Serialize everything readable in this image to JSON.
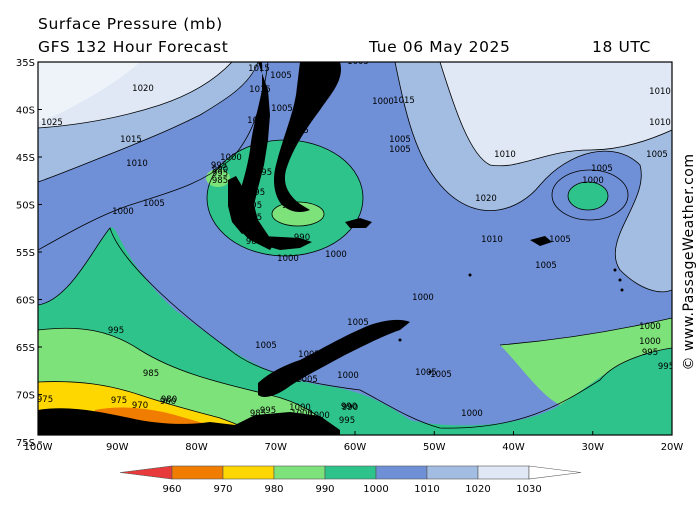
{
  "header": {
    "title": "Surface Pressure (mb)",
    "model_line": "GFS 132 Hour Forecast",
    "valid_date": "Tue 06 May 2025",
    "valid_time": "18 UTC"
  },
  "credit": "© www.PassageWeather.com",
  "axes": {
    "lat_labels": [
      "35S",
      "40S",
      "45S",
      "50S",
      "55S",
      "60S",
      "65S",
      "70S",
      "75S"
    ],
    "lon_labels": [
      "100W",
      "90W",
      "80W",
      "70W",
      "60W",
      "50W",
      "40W",
      "30W",
      "20W"
    ]
  },
  "colorbar": {
    "ticks": [
      "960",
      "970",
      "980",
      "990",
      "1000",
      "1010",
      "1020",
      "1030"
    ],
    "colors": [
      "#e83a3a",
      "#f07d00",
      "#ffd700",
      "#7ee27a",
      "#2fc38c",
      "#6f8fd6",
      "#a3bde2",
      "#dfe8f4",
      "#ffffff"
    ]
  },
  "map": {
    "land_color": "#000000",
    "contour_labels": [
      {
        "text": "1015",
        "name": "label-1015-a"
      },
      {
        "text": "1005",
        "name": "label-1005-a"
      },
      {
        "text": "1005",
        "name": "label-1005-b"
      },
      {
        "text": "1015",
        "name": "label-1015-b"
      },
      {
        "text": "1005",
        "name": "label-1005-c"
      },
      {
        "text": "1020",
        "name": "label-1020-a"
      },
      {
        "text": "1025",
        "name": "label-1025-a"
      },
      {
        "text": "1010",
        "name": "label-1010-a"
      },
      {
        "text": "1005",
        "name": "label-1005-d"
      },
      {
        "text": "1000",
        "name": "label-1000-a"
      },
      {
        "text": "1005",
        "name": "label-1005-e"
      },
      {
        "text": "1005",
        "name": "label-1005-f"
      },
      {
        "text": "1015",
        "name": "label-1015-c"
      },
      {
        "text": "1010",
        "name": "label-1010-b"
      },
      {
        "text": "1000",
        "name": "label-1000-b"
      },
      {
        "text": "995",
        "name": "label-995-a"
      },
      {
        "text": "990",
        "name": "label-990-a"
      },
      {
        "text": "985",
        "name": "label-985-a"
      },
      {
        "text": "1010",
        "name": "label-1010-c"
      },
      {
        "text": "1000",
        "name": "label-1000-c"
      },
      {
        "text": "1005",
        "name": "label-1005-g"
      },
      {
        "text": "1000",
        "name": "label-1000-d"
      },
      {
        "text": "995",
        "name": "label-995-b"
      },
      {
        "text": "990",
        "name": "label-990-b"
      },
      {
        "text": "995",
        "name": "label-995-c"
      },
      {
        "text": "990",
        "name": "label-990-c"
      },
      {
        "text": "985",
        "name": "label-985-b"
      },
      {
        "text": "995",
        "name": "label-995-d"
      },
      {
        "text": "995",
        "name": "label-995-e"
      },
      {
        "text": "1000",
        "name": "label-1000-e"
      },
      {
        "text": "995",
        "name": "label-995-f"
      },
      {
        "text": "1000",
        "name": "label-1000-f"
      },
      {
        "text": "1020",
        "name": "label-1020-b"
      },
      {
        "text": "1015",
        "name": "label-1015-d"
      },
      {
        "text": "1010",
        "name": "label-1010-d"
      },
      {
        "text": "1005",
        "name": "label-1005-h"
      },
      {
        "text": "1005",
        "name": "label-1005-i"
      },
      {
        "text": "1005",
        "name": "label-1005-j"
      },
      {
        "text": "1000",
        "name": "label-1000-g"
      },
      {
        "text": "1010",
        "name": "label-1010-e"
      },
      {
        "text": "1010",
        "name": "label-1010-f"
      },
      {
        "text": "1005",
        "name": "label-1005-k"
      },
      {
        "text": "1000",
        "name": "label-1000-h"
      },
      {
        "text": "1000",
        "name": "label-1000-i"
      },
      {
        "text": "1005",
        "name": "label-1005-l"
      },
      {
        "text": "1005",
        "name": "label-1005-m"
      },
      {
        "text": "1005",
        "name": "label-1005-n"
      },
      {
        "text": "1005",
        "name": "label-1005-o"
      },
      {
        "text": "1005",
        "name": "label-1005-p"
      },
      {
        "text": "1000",
        "name": "label-1000-j"
      },
      {
        "text": "995",
        "name": "label-995-g"
      },
      {
        "text": "1000",
        "name": "label-1000-k"
      },
      {
        "text": "1000",
        "name": "label-1000-l"
      },
      {
        "text": "1005",
        "name": "label-1005-q"
      },
      {
        "text": "1005",
        "name": "label-1005-r"
      },
      {
        "text": "995",
        "name": "label-995-h"
      },
      {
        "text": "990",
        "name": "label-990-d"
      },
      {
        "text": "1000",
        "name": "label-1000-m"
      },
      {
        "text": "995",
        "name": "label-995-i"
      },
      {
        "text": "985",
        "name": "label-985-c"
      },
      {
        "text": "980",
        "name": "label-980-a"
      },
      {
        "text": "970",
        "name": "label-970-a"
      },
      {
        "text": "975",
        "name": "label-975-a"
      },
      {
        "text": "980",
        "name": "label-980-b"
      },
      {
        "text": "975",
        "name": "label-975-b"
      },
      {
        "text": "980",
        "name": "label-980-c"
      },
      {
        "text": "960",
        "name": "label-960-a"
      },
      {
        "text": "985",
        "name": "label-985-d"
      },
      {
        "text": "990",
        "name": "label-990-e"
      },
      {
        "text": "995",
        "name": "label-995-j"
      },
      {
        "text": "995",
        "name": "label-995-k"
      },
      {
        "text": "1000",
        "name": "label-1000-n"
      },
      {
        "text": "975",
        "name": "label-975-c"
      },
      {
        "text": "980",
        "name": "label-980-d"
      },
      {
        "text": "985",
        "name": "label-985-e"
      }
    ]
  }
}
